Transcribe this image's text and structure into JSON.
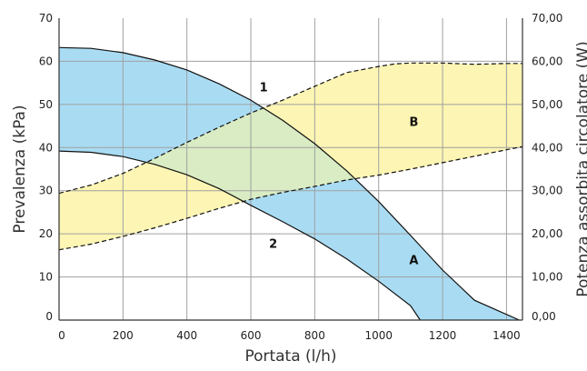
{
  "chart_data": {
    "type": "line",
    "xlabel": "Portata (l/h)",
    "ylabel": "Prevalenza (kPa)",
    "y2label": "Potenza assorbita circolatore (W)",
    "xlim": [
      0,
      1450
    ],
    "ylim": [
      0,
      70
    ],
    "y2lim": [
      0,
      70
    ],
    "grid": true,
    "x_ticks": [
      "0",
      "200",
      "400",
      "600",
      "800",
      "1000",
      "1200",
      "1400"
    ],
    "y_ticks": [
      "0",
      "10",
      "20",
      "30",
      "40",
      "50",
      "60",
      "70"
    ],
    "y2_ticks": [
      "0,00",
      "10,00",
      "20,00",
      "30,00",
      "40,00",
      "50,00",
      "60,00",
      "70,00"
    ],
    "colors": {
      "head_band": "#a9dcf3",
      "power_band": "#fdf5b3",
      "overlap": "#d9ecc3",
      "grid": "#a0a0a0",
      "line": "#111111"
    },
    "series": [
      {
        "name": "1",
        "axis": "left",
        "style": "solid",
        "points": [
          [
            0,
            63.2
          ],
          [
            100,
            63.0
          ],
          [
            200,
            62.0
          ],
          [
            300,
            60.3
          ],
          [
            400,
            58.0
          ],
          [
            500,
            54.8
          ],
          [
            600,
            51.0
          ],
          [
            700,
            46.3
          ],
          [
            800,
            40.9
          ],
          [
            900,
            34.6
          ],
          [
            1000,
            27.5
          ],
          [
            1100,
            19.6
          ],
          [
            1200,
            11.6
          ],
          [
            1300,
            4.6
          ],
          [
            1440,
            0
          ]
        ]
      },
      {
        "name": "2",
        "axis": "left",
        "style": "solid",
        "points": [
          [
            0,
            39.2
          ],
          [
            100,
            38.9
          ],
          [
            200,
            37.9
          ],
          [
            300,
            36.1
          ],
          [
            400,
            33.7
          ],
          [
            500,
            30.5
          ],
          [
            600,
            26.6
          ],
          [
            700,
            22.8
          ],
          [
            800,
            18.8
          ],
          [
            900,
            14.2
          ],
          [
            1000,
            9.0
          ],
          [
            1100,
            3.3
          ],
          [
            1130,
            0
          ]
        ]
      },
      {
        "axis": "right",
        "style": "dashed",
        "points": [
          [
            0,
            29.4
          ],
          [
            100,
            31.3
          ],
          [
            200,
            34.0
          ],
          [
            300,
            37.5
          ],
          [
            400,
            41.2
          ],
          [
            500,
            44.7
          ],
          [
            600,
            48.0
          ],
          [
            700,
            51.0
          ],
          [
            800,
            54.2
          ],
          [
            900,
            57.4
          ],
          [
            1000,
            58.8
          ],
          [
            1050,
            59.4
          ],
          [
            1100,
            59.6
          ],
          [
            1200,
            59.6
          ],
          [
            1300,
            59.3
          ],
          [
            1400,
            59.5
          ],
          [
            1450,
            59.5
          ]
        ]
      },
      {
        "axis": "right",
        "style": "dashed",
        "points": [
          [
            0,
            16.3
          ],
          [
            100,
            17.6
          ],
          [
            200,
            19.4
          ],
          [
            300,
            21.4
          ],
          [
            400,
            23.6
          ],
          [
            500,
            25.9
          ],
          [
            600,
            28.0
          ],
          [
            700,
            29.6
          ],
          [
            800,
            31.0
          ],
          [
            900,
            32.5
          ],
          [
            1000,
            33.6
          ],
          [
            1100,
            35.0
          ],
          [
            1200,
            36.5
          ],
          [
            1300,
            38.0
          ],
          [
            1400,
            39.5
          ],
          [
            1450,
            40.2
          ]
        ]
      }
    ],
    "annotations": [
      {
        "text": "1",
        "x": 640,
        "y": 53.0
      },
      {
        "text": "2",
        "x": 670,
        "y": 16.8
      },
      {
        "text": "A",
        "x": 1110,
        "y": 13.0
      },
      {
        "text": "B",
        "x": 1110,
        "y": 45.0
      }
    ]
  }
}
